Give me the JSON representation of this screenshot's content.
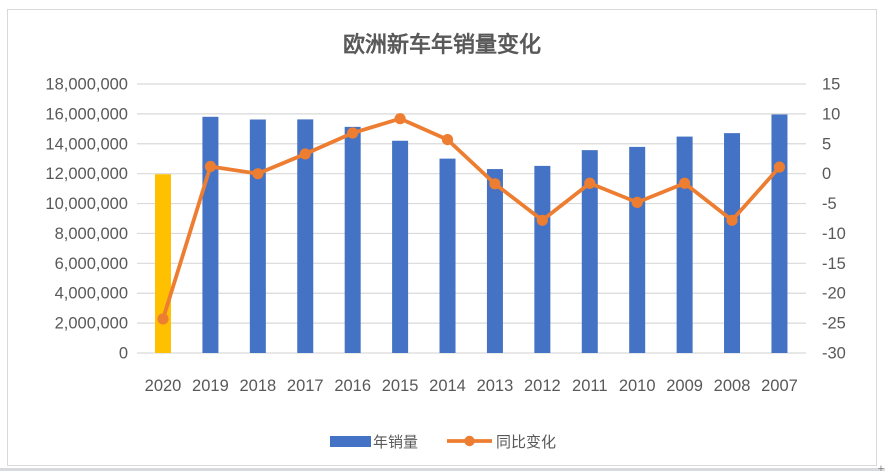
{
  "chart_data": {
    "type": "combo-bar-line",
    "title": "欧洲新车年销量变化",
    "categories": [
      "2020",
      "2019",
      "2018",
      "2017",
      "2016",
      "2015",
      "2014",
      "2013",
      "2012",
      "2011",
      "2010",
      "2009",
      "2008",
      "2007"
    ],
    "series": [
      {
        "name": "年销量",
        "type": "bar",
        "axis": "left",
        "color": "#4472C4",
        "highlight_category": "2020",
        "highlight_color": "#FFC000",
        "values": [
          11961182,
          15805752,
          15624486,
          15631687,
          15131719,
          14202024,
          13006451,
          12308199,
          12520421,
          13573525,
          13790922,
          14481545,
          14712158,
          15959930
        ]
      },
      {
        "name": "同比变化",
        "type": "line",
        "axis": "right",
        "color": "#ED7D31",
        "values": [
          -24.3,
          1.2,
          0,
          3.3,
          6.8,
          9.2,
          5.7,
          -1.7,
          -7.8,
          -1.6,
          -4.8,
          -1.6,
          -7.8,
          1.1
        ]
      }
    ],
    "left_axis": {
      "min": 0,
      "max": 18000000,
      "step": 2000000,
      "labels": [
        "18,000,000",
        "16,000,000",
        "14,000,000",
        "12,000,000",
        "10,000,000",
        "8,000,000",
        "6,000,000",
        "4,000,000",
        "2,000,000",
        "0"
      ]
    },
    "right_axis": {
      "min": -30,
      "max": 15,
      "step": 5,
      "labels": [
        "15",
        "10",
        "5",
        "0",
        "-5",
        "-10",
        "-15",
        "-20",
        "-25",
        "-30"
      ]
    },
    "grid": {
      "show": true,
      "color": "#D9D9D9"
    },
    "legend": {
      "position": "bottom",
      "items": [
        {
          "label": "年销量",
          "marker": "bar-swatch",
          "color": "#4472C4"
        },
        {
          "label": "同比变化",
          "marker": "line-dot",
          "color": "#ED7D31"
        }
      ]
    }
  },
  "style": {
    "text_color": "#595959",
    "panel_border": "#D9D9D9",
    "background": "#FFFFFF",
    "bar_blue": "#4472C4",
    "bar_yellow": "#FFC000",
    "line_orange": "#ED7D31",
    "gridline": "#D9D9D9"
  },
  "decor": {
    "corner_mark": "+"
  }
}
